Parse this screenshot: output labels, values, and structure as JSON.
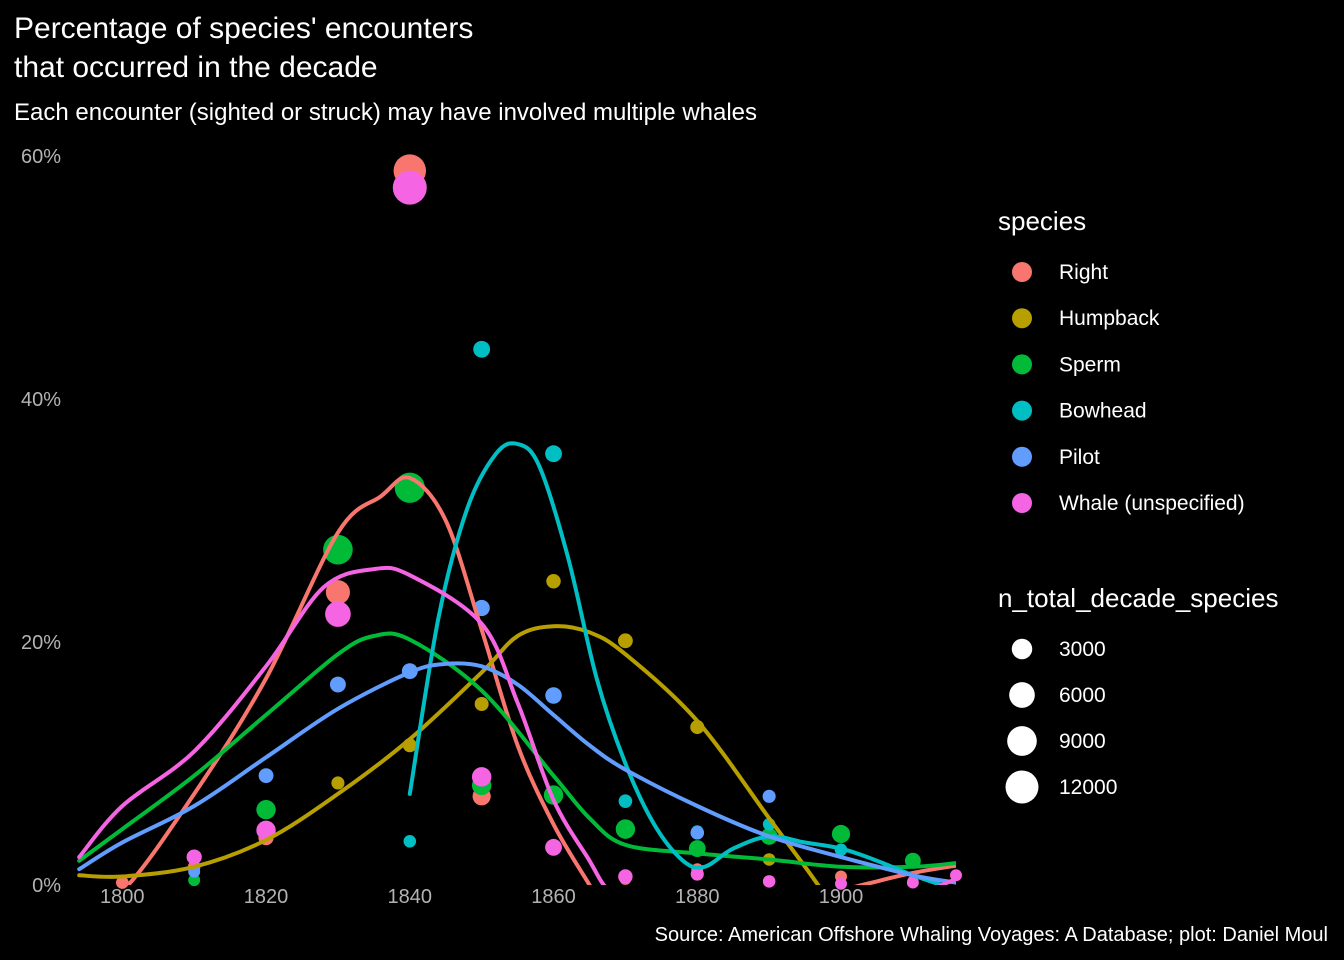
{
  "chart_data": {
    "type": "scatter",
    "title_lines": [
      "Percentage of species' encounters",
      "that occurred in the decade"
    ],
    "subtitle": "Each encounter (sighted or struck) may have involved multiple whales",
    "caption": "Source: American Offshore Whaling Voyages: A Database; plot: Daniel Moul",
    "xlabel": "",
    "ylabel": "",
    "xlim": [
      1793,
      1916
    ],
    "ylim": [
      0,
      60.5
    ],
    "x_ticks": [
      1800,
      1820,
      1840,
      1860,
      1880,
      1900
    ],
    "y_ticks": [
      0,
      20,
      40,
      60
    ],
    "y_tick_labels": [
      "0%",
      "20%",
      "40%",
      "60%"
    ],
    "grid": false,
    "legend_position": "right",
    "color_legend": {
      "title": "species",
      "entries": [
        "Right",
        "Humpback",
        "Sperm",
        "Bowhead",
        "Pilot",
        "Whale (unspecified)"
      ]
    },
    "size_legend": {
      "title": "n_total_decade_species",
      "breaks": [
        3000,
        6000,
        9000,
        12000
      ],
      "labels": [
        "3000",
        "6000",
        "9000",
        "12000"
      ]
    },
    "series": [
      {
        "name": "Right",
        "color": "#F8766D",
        "points": [
          [
            1800,
            0.2,
            400
          ],
          [
            1810,
            1.5,
            400
          ],
          [
            1820,
            3.9,
            1000
          ],
          [
            1830,
            24.1,
            5000
          ],
          [
            1840,
            58.8,
            11500
          ],
          [
            1850,
            7.3,
            2000
          ],
          [
            1860,
            3.0,
            700
          ],
          [
            1870,
            0.5,
            300
          ],
          [
            1880,
            1.3,
            300
          ],
          [
            1900,
            0.7,
            300
          ],
          [
            1910,
            0.3,
            200
          ]
        ],
        "smooth": [
          [
            1794,
            -1.5
          ],
          [
            1800,
            -0.5
          ],
          [
            1810,
            7.5
          ],
          [
            1820,
            17.0
          ],
          [
            1830,
            29.0
          ],
          [
            1836,
            32.0
          ],
          [
            1840,
            33.5
          ],
          [
            1845,
            30.0
          ],
          [
            1850,
            21.0
          ],
          [
            1855,
            11.5
          ],
          [
            1860,
            5.0
          ],
          [
            1865,
            0.0
          ],
          [
            1867,
            -2.0
          ]
        ],
        "smooth_tail": [
          [
            1897,
            -1.5
          ],
          [
            1900,
            -0.5
          ],
          [
            1905,
            0.3
          ],
          [
            1910,
            1.0
          ],
          [
            1916,
            1.6
          ]
        ]
      },
      {
        "name": "Humpback",
        "color": "#B79F00",
        "points": [
          [
            1830,
            8.4,
            500
          ],
          [
            1840,
            11.5,
            700
          ],
          [
            1850,
            14.9,
            700
          ],
          [
            1860,
            25.0,
            800
          ],
          [
            1870,
            20.1,
            900
          ],
          [
            1880,
            13.0,
            700
          ],
          [
            1890,
            2.1,
            400
          ]
        ],
        "smooth": [
          [
            1794,
            0.8
          ],
          [
            1800,
            0.7
          ],
          [
            1810,
            1.5
          ],
          [
            1820,
            3.7
          ],
          [
            1830,
            7.5
          ],
          [
            1840,
            12.0
          ],
          [
            1850,
            17.5
          ],
          [
            1855,
            20.5
          ],
          [
            1860,
            21.3
          ],
          [
            1865,
            20.8
          ],
          [
            1870,
            19.0
          ],
          [
            1880,
            13.5
          ],
          [
            1890,
            5.5
          ],
          [
            1895,
            1.5
          ],
          [
            1898,
            -1.0
          ]
        ]
      },
      {
        "name": "Sperm",
        "color": "#00BA38",
        "points": [
          [
            1810,
            0.4,
            300
          ],
          [
            1820,
            6.2,
            2500
          ],
          [
            1830,
            27.6,
            9000
          ],
          [
            1840,
            32.7,
            9500
          ],
          [
            1850,
            8.2,
            2500
          ],
          [
            1860,
            7.4,
            2500
          ],
          [
            1870,
            4.6,
            2500
          ],
          [
            1880,
            3.0,
            1500
          ],
          [
            1890,
            4.0,
            1500
          ],
          [
            1900,
            4.2,
            2000
          ],
          [
            1910,
            2.0,
            1200
          ]
        ],
        "smooth": [
          [
            1794,
            2.0
          ],
          [
            1800,
            4.6
          ],
          [
            1810,
            9.0
          ],
          [
            1820,
            14.0
          ],
          [
            1830,
            19.0
          ],
          [
            1835,
            20.5
          ],
          [
            1840,
            20.2
          ],
          [
            1850,
            16.0
          ],
          [
            1860,
            9.0
          ],
          [
            1865,
            5.5
          ],
          [
            1870,
            3.3
          ],
          [
            1880,
            2.6
          ],
          [
            1890,
            2.1
          ],
          [
            1900,
            1.5
          ],
          [
            1910,
            1.5
          ],
          [
            1916,
            1.8
          ]
        ]
      },
      {
        "name": "Bowhead",
        "color": "#00BFC4",
        "points": [
          [
            1840,
            3.6,
            400
          ],
          [
            1850,
            44.1,
            1500
          ],
          [
            1860,
            35.5,
            1500
          ],
          [
            1870,
            6.9,
            600
          ],
          [
            1880,
            4.4,
            400
          ],
          [
            1890,
            5.0,
            400
          ],
          [
            1900,
            2.9,
            400
          ]
        ],
        "smooth": [
          [
            1840,
            7.5
          ],
          [
            1844,
            22.0
          ],
          [
            1848,
            31.0
          ],
          [
            1852,
            35.5
          ],
          [
            1855,
            36.3
          ],
          [
            1858,
            34.5
          ],
          [
            1862,
            27.0
          ],
          [
            1866,
            17.0
          ],
          [
            1870,
            10.0
          ],
          [
            1874,
            5.0
          ],
          [
            1878,
            2.0
          ],
          [
            1881,
            1.5
          ],
          [
            1885,
            3.0
          ],
          [
            1890,
            4.0
          ],
          [
            1895,
            3.5
          ],
          [
            1900,
            3.0
          ],
          [
            1905,
            2.0
          ],
          [
            1910,
            0.8
          ],
          [
            1914,
            0.0
          ]
        ]
      },
      {
        "name": "Pilot",
        "color": "#619CFF",
        "points": [
          [
            1810,
            1.1,
            300
          ],
          [
            1820,
            9.0,
            900
          ],
          [
            1830,
            16.5,
            1200
          ],
          [
            1840,
            17.6,
            1200
          ],
          [
            1850,
            22.8,
            1300
          ],
          [
            1860,
            15.6,
            1400
          ],
          [
            1880,
            4.3,
            600
          ],
          [
            1890,
            7.3,
            500
          ]
        ],
        "smooth": [
          [
            1794,
            1.3
          ],
          [
            1800,
            3.5
          ],
          [
            1810,
            6.5
          ],
          [
            1820,
            10.5
          ],
          [
            1830,
            14.5
          ],
          [
            1840,
            17.5
          ],
          [
            1845,
            18.2
          ],
          [
            1850,
            18.0
          ],
          [
            1855,
            16.5
          ],
          [
            1860,
            14.0
          ],
          [
            1865,
            11.5
          ],
          [
            1870,
            9.5
          ],
          [
            1880,
            6.5
          ],
          [
            1890,
            4.0
          ],
          [
            1900,
            2.3
          ],
          [
            1910,
            0.8
          ],
          [
            1916,
            0.2
          ]
        ]
      },
      {
        "name": "Whale (unspecified)",
        "color": "#F564E3",
        "points": [
          [
            1810,
            2.3,
            1000
          ],
          [
            1820,
            4.5,
            2500
          ],
          [
            1830,
            22.3,
            6000
          ],
          [
            1840,
            57.4,
            13000
          ],
          [
            1850,
            8.9,
            2500
          ],
          [
            1860,
            3.1,
            1500
          ],
          [
            1870,
            0.7,
            800
          ],
          [
            1880,
            0.9,
            500
          ],
          [
            1890,
            0.3,
            400
          ],
          [
            1900,
            0.1,
            300
          ],
          [
            1910,
            0.2,
            300
          ],
          [
            1916,
            0.8,
            300
          ]
        ],
        "smooth": [
          [
            1794,
            2.3
          ],
          [
            1800,
            6.5
          ],
          [
            1810,
            11.0
          ],
          [
            1820,
            18.0
          ],
          [
            1828,
            24.5
          ],
          [
            1835,
            26.0
          ],
          [
            1840,
            25.5
          ],
          [
            1850,
            21.5
          ],
          [
            1855,
            15.0
          ],
          [
            1860,
            7.0
          ],
          [
            1865,
            2.0
          ],
          [
            1867,
            0.0
          ],
          [
            1869,
            -1.0
          ]
        ],
        "smooth_tail": [
          [
            1912,
            -0.5
          ],
          [
            1916,
            0.5
          ]
        ]
      }
    ]
  }
}
